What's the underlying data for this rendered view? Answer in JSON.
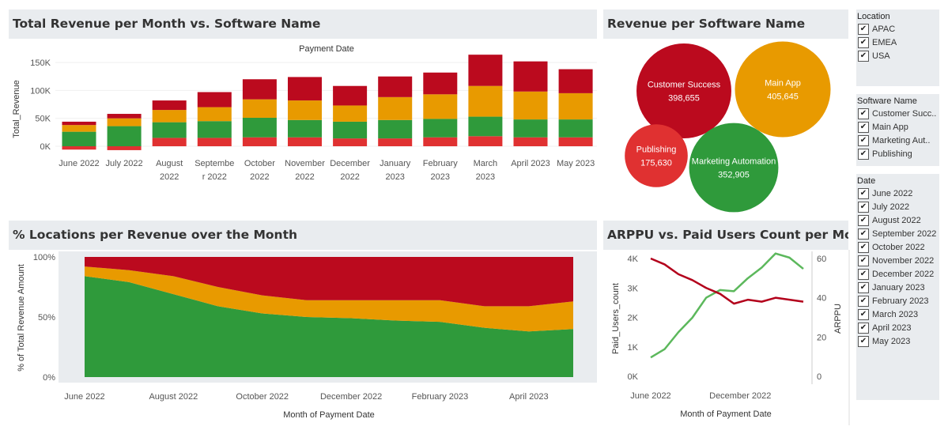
{
  "panels": {
    "bar": {
      "title": "Total Revenue per Month vs. Software Name"
    },
    "bubble": {
      "title": "Revenue per Software Name"
    },
    "area": {
      "title": "% Locations per Revenue over the Month"
    },
    "arppu": {
      "title": "ARPPU vs. Paid Users Count per Month"
    }
  },
  "colors": {
    "publishing": "#e03131",
    "marketing_automation": "#2f9a3b",
    "main_app": "#e89a00",
    "customer_success": "#bb0a1e",
    "arppu_line": "#b3001b",
    "users_line": "#5cb85c",
    "panel_bg": "#e9ecef"
  },
  "filters": {
    "location": {
      "title": "Location",
      "items": [
        {
          "label": "APAC",
          "checked": "✔"
        },
        {
          "label": "EMEA",
          "checked": "✔"
        },
        {
          "label": "USA",
          "checked": "✔"
        }
      ]
    },
    "software": {
      "title": "Software Name",
      "items": [
        {
          "label": "Customer Succ..",
          "checked": "✔"
        },
        {
          "label": "Main App",
          "checked": "✔"
        },
        {
          "label": "Marketing Aut..",
          "checked": "✔"
        },
        {
          "label": "Publishing",
          "checked": "✔"
        }
      ]
    },
    "date": {
      "title": "Date",
      "items": [
        {
          "label": "June 2022",
          "checked": "✔"
        },
        {
          "label": "July 2022",
          "checked": "✔"
        },
        {
          "label": "August 2022",
          "checked": "✔"
        },
        {
          "label": "September 2022",
          "checked": "✔"
        },
        {
          "label": "October 2022",
          "checked": "✔"
        },
        {
          "label": "November 2022",
          "checked": "✔"
        },
        {
          "label": "December 2022",
          "checked": "✔"
        },
        {
          "label": "January 2023",
          "checked": "✔"
        },
        {
          "label": "February 2023",
          "checked": "✔"
        },
        {
          "label": "March 2023",
          "checked": "✔"
        },
        {
          "label": "April 2023",
          "checked": "✔"
        },
        {
          "label": "May 2023",
          "checked": "✔"
        }
      ]
    }
  },
  "chart_data": [
    {
      "type": "bar",
      "stacked": true,
      "title": "Total Revenue per Month vs. Software Name",
      "header_label": "Payment Date",
      "ylabel": "Total_Revenue",
      "ylim": [
        -8000,
        160000
      ],
      "yticks": [
        0,
        50000,
        100000,
        150000
      ],
      "ytick_labels": [
        "0K",
        "50K",
        "100K",
        "150K"
      ],
      "categories": [
        "June 2022",
        "July 2022",
        "August 2022",
        "September 2022",
        "October 2022",
        "November 2022",
        "December 2022",
        "January 2023",
        "February 2023",
        "March 2023",
        "April 2023",
        "May 2023"
      ],
      "category_labels": [
        [
          "June 2022"
        ],
        [
          "July 2022"
        ],
        [
          "August",
          "2022"
        ],
        [
          "Septembe",
          "r 2022"
        ],
        [
          "October",
          "2022"
        ],
        [
          "November",
          "2022"
        ],
        [
          "December",
          "2022"
        ],
        [
          "January",
          "2023"
        ],
        [
          "February",
          "2023"
        ],
        [
          "March",
          "2023"
        ],
        [
          "April 2023"
        ],
        [
          "May 2023"
        ]
      ],
      "series": [
        {
          "values": [
            -6000,
            -7000,
            15000,
            15000,
            16000,
            16000,
            14000,
            14000,
            16000,
            18000,
            16000,
            16000
          ]
        },
        {
          "values": [
            26000,
            36000,
            28000,
            30000,
            35000,
            31000,
            30000,
            33000,
            33000,
            35000,
            32000,
            32000
          ]
        },
        {
          "values": [
            12000,
            14000,
            22000,
            25000,
            33000,
            35000,
            29000,
            41000,
            44000,
            55000,
            50000,
            47000
          ]
        },
        {
          "values": [
            6000,
            8000,
            17000,
            27000,
            36000,
            42000,
            35000,
            37000,
            39000,
            56000,
            54000,
            43000
          ]
        }
      ]
    },
    {
      "type": "bubble",
      "title": "Revenue per Software Name",
      "items": [
        {
          "name": "Customer Success",
          "value_label": "398,655",
          "value": 398655
        },
        {
          "name": "Main App",
          "value_label": "405,645",
          "value": 405645
        },
        {
          "name": "Publishing",
          "value_label": "175,630",
          "value": 175630
        },
        {
          "name": "Marketing Automation",
          "value_label": "352,905",
          "value": 352905
        }
      ]
    },
    {
      "type": "area",
      "stacked": true,
      "title": "% Locations per Revenue over the Month",
      "xlabel": "Month of Payment Date",
      "ylabel": "% of Total Revenue Amount",
      "ylim": [
        0,
        100
      ],
      "yticks": [
        0,
        50,
        100
      ],
      "ytick_labels": [
        "0%",
        "50%",
        "100%"
      ],
      "x": [
        "2022-06",
        "2022-07",
        "2022-08",
        "2022-09",
        "2022-10",
        "2022-11",
        "2022-12",
        "2023-01",
        "2023-02",
        "2023-03",
        "2023-04",
        "2023-05"
      ],
      "xtick_labels": [
        "June 2022",
        "August 2022",
        "October 2022",
        "December 2022",
        "February 2023",
        "April 2023"
      ],
      "series": [
        {
          "values": [
            84,
            79,
            69,
            59,
            53,
            50,
            49,
            47,
            46,
            41,
            38,
            40
          ]
        },
        {
          "values": [
            8,
            10,
            15,
            16,
            15,
            14,
            15,
            17,
            18,
            18,
            21,
            23
          ]
        },
        {
          "values": [
            8,
            11,
            16,
            25,
            32,
            36,
            36,
            36,
            36,
            41,
            41,
            37
          ]
        }
      ]
    },
    {
      "type": "line",
      "dual_axis": true,
      "title": "ARPPU vs. Paid Users Count per Month",
      "xlabel": "Month of Payment Date",
      "ylabel_left": "Paid_Users_count",
      "ylabel_right": "ARPPU",
      "ylim_left": [
        0,
        4000
      ],
      "yticks_left": [
        0,
        1000,
        2000,
        3000,
        4000
      ],
      "ytick_labels_left": [
        "0K",
        "1K",
        "2K",
        "3K",
        "4K"
      ],
      "ylim_right": [
        0,
        60
      ],
      "yticks_right": [
        0,
        20,
        40,
        60
      ],
      "ytick_labels_right": [
        "0",
        "20",
        "40",
        "60"
      ],
      "x": [
        "2022-06",
        "2022-07",
        "2022-08",
        "2022-09",
        "2022-10",
        "2022-11",
        "2022-12",
        "2023-01",
        "2023-02",
        "2023-03",
        "2023-04",
        "2023-05"
      ],
      "xtick_labels": [
        "June 2022",
        "December 2022"
      ],
      "series": [
        {
          "axis": "left",
          "values": [
            640,
            920,
            1500,
            1990,
            2670,
            2930,
            2890,
            3330,
            3690,
            4170,
            4030,
            3650
          ]
        },
        {
          "axis": "right",
          "values": [
            60,
            57,
            52,
            49,
            45,
            42,
            37,
            39,
            38,
            40,
            39,
            38
          ]
        }
      ]
    }
  ]
}
